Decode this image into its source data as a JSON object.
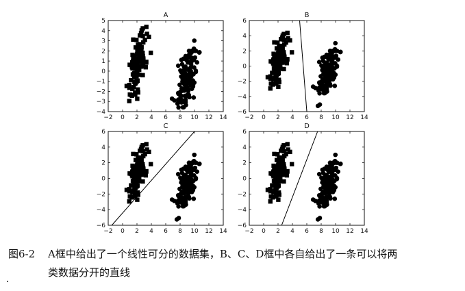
{
  "caption": {
    "number": "图6-2",
    "line1": "A框中给出了一个线性可分的数据集，B、C、D框中各自给出了一条可以将两",
    "line2": "类数据分开的直线"
  },
  "chart_data": [
    {
      "type": "scatter",
      "title": "A",
      "xlim": [
        -2,
        14
      ],
      "ylim": [
        -4,
        5
      ],
      "xticks": [
        -2,
        0,
        2,
        4,
        6,
        8,
        10,
        12,
        14
      ],
      "yticks": [
        -4,
        -3,
        -2,
        -1,
        0,
        1,
        2,
        3,
        4,
        5
      ],
      "series": [
        {
          "marker": "square",
          "center": [
            2.0,
            0.5
          ],
          "spread": [
            0.9,
            1.3
          ],
          "count": 110
        },
        {
          "marker": "circle",
          "center": [
            9.0,
            -0.6
          ],
          "spread": [
            1.0,
            1.3
          ],
          "count": 140
        }
      ],
      "line": null
    },
    {
      "type": "scatter",
      "title": "B",
      "xlim": [
        -2,
        14
      ],
      "ylim": [
        -6,
        6
      ],
      "xticks": [
        -2,
        0,
        2,
        4,
        6,
        8,
        10,
        12,
        14
      ],
      "yticks": [
        -6,
        -4,
        -2,
        0,
        2,
        4,
        6
      ],
      "series": [
        {
          "marker": "square",
          "center": [
            2.0,
            0.5
          ],
          "spread": [
            0.9,
            1.3
          ],
          "count": 110
        },
        {
          "marker": "circle",
          "center": [
            9.0,
            -0.6
          ],
          "spread": [
            1.0,
            1.3
          ],
          "count": 140
        }
      ],
      "line": [
        [
          5.0,
          6
        ],
        [
          6.0,
          -6
        ]
      ]
    },
    {
      "type": "scatter",
      "title": "C",
      "xlim": [
        -2,
        14
      ],
      "ylim": [
        -6,
        6
      ],
      "xticks": [
        -2,
        0,
        2,
        4,
        6,
        8,
        10,
        12,
        14
      ],
      "yticks": [
        -6,
        -4,
        -2,
        0,
        2,
        4,
        6
      ],
      "series": [
        {
          "marker": "square",
          "center": [
            2.0,
            0.5
          ],
          "spread": [
            0.9,
            1.3
          ],
          "count": 110
        },
        {
          "marker": "circle",
          "center": [
            9.0,
            -0.6
          ],
          "spread": [
            1.0,
            1.3
          ],
          "count": 140
        }
      ],
      "line": [
        [
          -1.5,
          -6
        ],
        [
          10.0,
          6
        ]
      ]
    },
    {
      "type": "scatter",
      "title": "D",
      "xlim": [
        -2,
        14
      ],
      "ylim": [
        -6,
        6
      ],
      "xticks": [
        -2,
        0,
        2,
        4,
        6,
        8,
        10,
        12,
        14
      ],
      "yticks": [
        -6,
        -4,
        -2,
        0,
        2,
        4,
        6
      ],
      "series": [
        {
          "marker": "square",
          "center": [
            2.0,
            0.5
          ],
          "spread": [
            0.9,
            1.3
          ],
          "count": 110
        },
        {
          "marker": "circle",
          "center": [
            9.0,
            -0.6
          ],
          "spread": [
            1.0,
            1.3
          ],
          "count": 140
        }
      ],
      "line": [
        [
          2.5,
          -6
        ],
        [
          7.5,
          6
        ]
      ]
    }
  ]
}
